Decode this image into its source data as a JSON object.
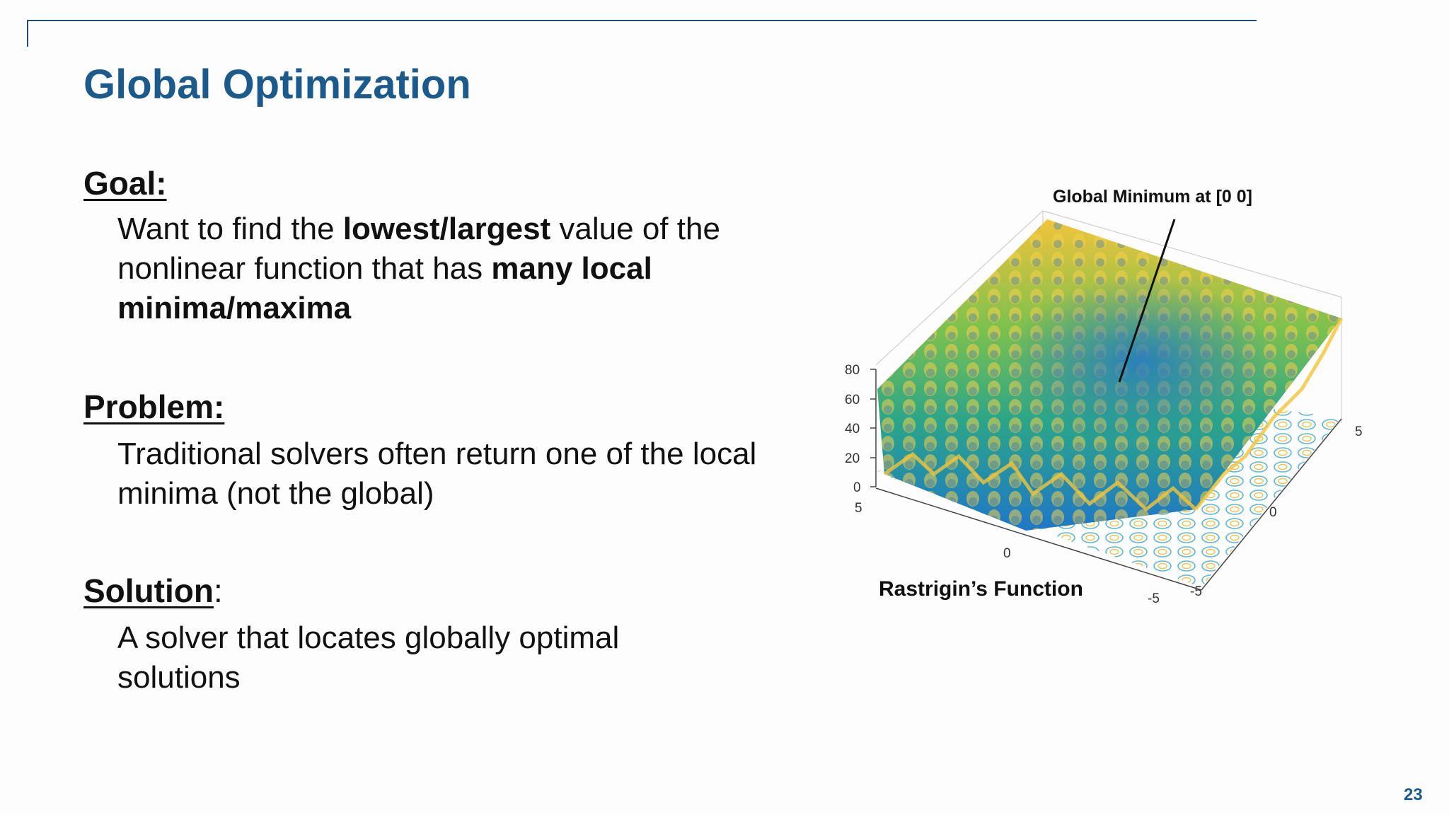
{
  "slide": {
    "title": "Global Optimization",
    "page_number": "23"
  },
  "goal": {
    "heading": "Goal:",
    "text_1": "Want to find the ",
    "bold_1": "lowest/largest",
    "text_2": " value of the nonlinear function that has ",
    "bold_2": "many local minima/maxima"
  },
  "problem": {
    "heading": "Problem:",
    "text": "Traditional solvers often return one of the local minima (not the global)"
  },
  "solution": {
    "heading_underlined": "Solution",
    "heading_colon": ":",
    "text": "A solver that locates globally optimal solutions"
  },
  "figure": {
    "callout": "Global Minimum at [0 0]",
    "caption": "Rastrigin’s Function",
    "z_ticks": [
      "80",
      "60",
      "40",
      "20",
      "0"
    ],
    "x_ticks": [
      "5",
      "0",
      "-5"
    ],
    "y_ticks": [
      "5",
      "0",
      "-5"
    ],
    "colors": {
      "low": "#1f77c8",
      "mid": "#2aa58a",
      "high": "#f2c43a"
    }
  }
}
